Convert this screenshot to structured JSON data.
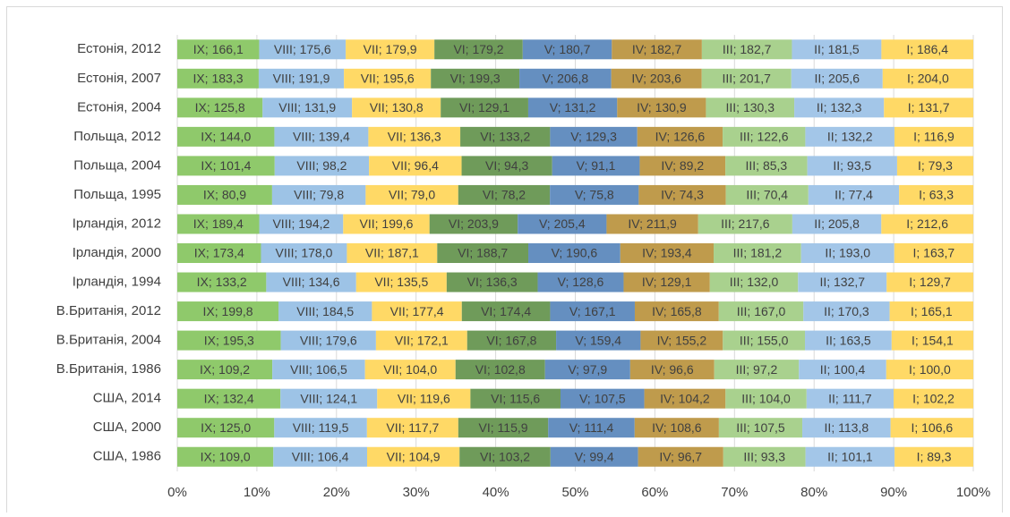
{
  "chart_data": {
    "type": "bar100h",
    "categories": [
      "Естонія, 2012",
      "Естонія, 2007",
      "Естонія, 2004",
      "Польща, 2012",
      "Польща, 2004",
      "Польща, 1995",
      "Ірландія, 2012",
      "Ірландія, 2000",
      "Ірландія, 1994",
      "В.Британія, 2012",
      "В.Британія, 2004",
      "В.Британія, 1986",
      "США, 2014",
      "США, 2000",
      "США, 1986"
    ],
    "series": [
      {
        "color": "#8fc96b",
        "values": [
          166.1,
          183.3,
          125.8,
          144.0,
          101.4,
          80.9,
          189.4,
          173.4,
          133.2,
          199.8,
          195.3,
          109.2,
          132.4,
          125.0,
          109.0
        ],
        "value_labels": [
          "IX; 166,1",
          "IX; 183,3",
          "IX; 125,8",
          "IX; 144,0",
          "IX; 101,4",
          "IX; 80,9",
          "IX; 189,4",
          "IX; 173,4",
          "IX; 133,2",
          "IX; 199,8",
          "IX; 195,3",
          "IX; 109,2",
          "IX; 132,4",
          "IX; 125,0",
          "IX; 109,0"
        ]
      },
      {
        "color": "#9dc3e6",
        "values": [
          175.6,
          191.9,
          131.9,
          139.4,
          98.2,
          79.8,
          194.2,
          178.0,
          134.6,
          184.5,
          179.6,
          106.5,
          124.1,
          119.5,
          106.4
        ],
        "value_labels": [
          "VIII; 175,6",
          "VIII; 191,9",
          "VIII; 131,9",
          "VIII; 139,4",
          "VIII; 98,2",
          "VIII; 79,8",
          "VIII; 194,2",
          "VIII; 178,0",
          "VIII; 134,6",
          "VIII; 184,5",
          "VIII; 179,6",
          "VIII; 106,5",
          "VIII; 124,1",
          "VIII; 119,5",
          "VIII; 106,4"
        ]
      },
      {
        "color": "#ffd966",
        "values": [
          179.9,
          195.6,
          130.8,
          136.3,
          96.4,
          79.0,
          199.6,
          187.1,
          135.5,
          177.4,
          172.1,
          104.0,
          119.6,
          117.7,
          104.9
        ],
        "value_labels": [
          "VII; 179,9",
          "VII; 195,6",
          "VII; 130,8",
          "VII; 136,3",
          "VII; 96,4",
          "VII; 79,0",
          "VII; 199,6",
          "VII; 187,1",
          "VII; 135,5",
          "VII; 177,4",
          "VII; 172,1",
          "VII; 104,0",
          "VII; 119,6",
          "VII; 117,7",
          "VII; 104,9"
        ]
      },
      {
        "color": "#6f9b5a",
        "values": [
          179.2,
          199.3,
          129.1,
          133.2,
          94.3,
          78.2,
          203.9,
          188.7,
          136.3,
          174.4,
          167.8,
          102.8,
          115.6,
          115.9,
          103.2
        ],
        "value_labels": [
          "VI; 179,2",
          "VI; 199,3",
          "VI; 129,1",
          "VI; 133,2",
          "VI; 94,3",
          "VI; 78,2",
          "VI; 203,9",
          "VI; 188,7",
          "VI; 136,3",
          "VI; 174,4",
          "VI; 167,8",
          "VI; 102,8",
          "VI; 115,6",
          "VI; 115,9",
          "VI; 103,2"
        ]
      },
      {
        "color": "#658fc0",
        "values": [
          180.7,
          206.8,
          131.2,
          129.3,
          91.1,
          75.8,
          205.4,
          190.6,
          128.6,
          167.1,
          159.4,
          97.9,
          107.5,
          111.4,
          99.4
        ],
        "value_labels": [
          "V; 180,7",
          "V; 206,8",
          "V; 131,2",
          "V; 129,3",
          "V; 91,1",
          "V; 75,8",
          "V; 205,4",
          "V; 190,6",
          "V; 128,6",
          "V; 167,1",
          "V; 159,4",
          "V; 97,9",
          "V; 107,5",
          "V; 111,4",
          "V; 99,4"
        ]
      },
      {
        "color": "#bf9b4c",
        "values": [
          182.7,
          203.6,
          130.9,
          126.6,
          89.2,
          74.3,
          211.9,
          193.4,
          129.1,
          165.8,
          155.2,
          96.6,
          104.2,
          108.6,
          96.7
        ],
        "value_labels": [
          "IV; 182,7",
          "IV; 203,6",
          "IV; 130,9",
          "IV; 126,6",
          "IV; 89,2",
          "IV; 74,3",
          "IV; 211,9",
          "IV; 193,4",
          "IV; 129,1",
          "IV; 165,8",
          "IV; 155,2",
          "IV; 96,6",
          "IV; 104,2",
          "IV; 108,6",
          "IV; 96,7"
        ]
      },
      {
        "color": "#a9d18e",
        "values": [
          182.7,
          201.7,
          130.3,
          122.6,
          85.3,
          70.4,
          217.6,
          181.2,
          132.0,
          167.0,
          155.0,
          97.2,
          104.0,
          107.5,
          93.3
        ],
        "value_labels": [
          "III; 182,7",
          "III; 201,7",
          "III; 130,3",
          "III; 122,6",
          "III; 85,3",
          "III; 70,4",
          "III; 217,6",
          "III; 181,2",
          "III; 132,0",
          "III; 167,0",
          "III; 155,0",
          "III; 97,2",
          "III; 104,0",
          "III; 107,5",
          "III; 93,3"
        ]
      },
      {
        "color": "#a3c6e8",
        "values": [
          181.5,
          205.6,
          132.3,
          132.2,
          93.5,
          77.4,
          205.8,
          193.0,
          132.7,
          170.3,
          163.5,
          100.4,
          111.7,
          113.8,
          101.1
        ],
        "value_labels": [
          "II; 181,5",
          "II; 205,6",
          "II; 132,3",
          "II; 132,2",
          "II; 93,5",
          "II; 77,4",
          "II; 205,8",
          "II; 193,0",
          "II; 132,7",
          "II; 170,3",
          "II; 163,5",
          "II; 100,4",
          "II; 111,7",
          "II; 113,8",
          "II; 101,1"
        ]
      },
      {
        "color": "#ffd966",
        "values": [
          186.4,
          204.0,
          131.7,
          116.9,
          79.3,
          63.3,
          212.6,
          163.7,
          129.7,
          165.1,
          154.1,
          100.0,
          102.2,
          106.6,
          89.3
        ],
        "value_labels": [
          "I; 186,4",
          "I; 204,0",
          "I; 131,7",
          "I; 116,9",
          "I; 79,3",
          "I; 63,3",
          "I; 212,6",
          "I; 163,7",
          "I; 129,7",
          "I; 165,1",
          "I; 154,1",
          "I; 100,0",
          "I; 102,2",
          "I; 106,6",
          "I; 89,3"
        ]
      }
    ],
    "xlim": [
      0,
      100
    ],
    "xticks": [
      {
        "value": 0,
        "label": "0%"
      },
      {
        "value": 10,
        "label": "10%"
      },
      {
        "value": 20,
        "label": "20%"
      },
      {
        "value": 30,
        "label": "30%"
      },
      {
        "value": 40,
        "label": "40%"
      },
      {
        "value": 50,
        "label": "50%"
      },
      {
        "value": 60,
        "label": "60%"
      },
      {
        "value": 70,
        "label": "70%"
      },
      {
        "value": 80,
        "label": "80%"
      },
      {
        "value": 90,
        "label": "90%"
      },
      {
        "value": 100,
        "label": "100%"
      }
    ],
    "grid": true
  }
}
